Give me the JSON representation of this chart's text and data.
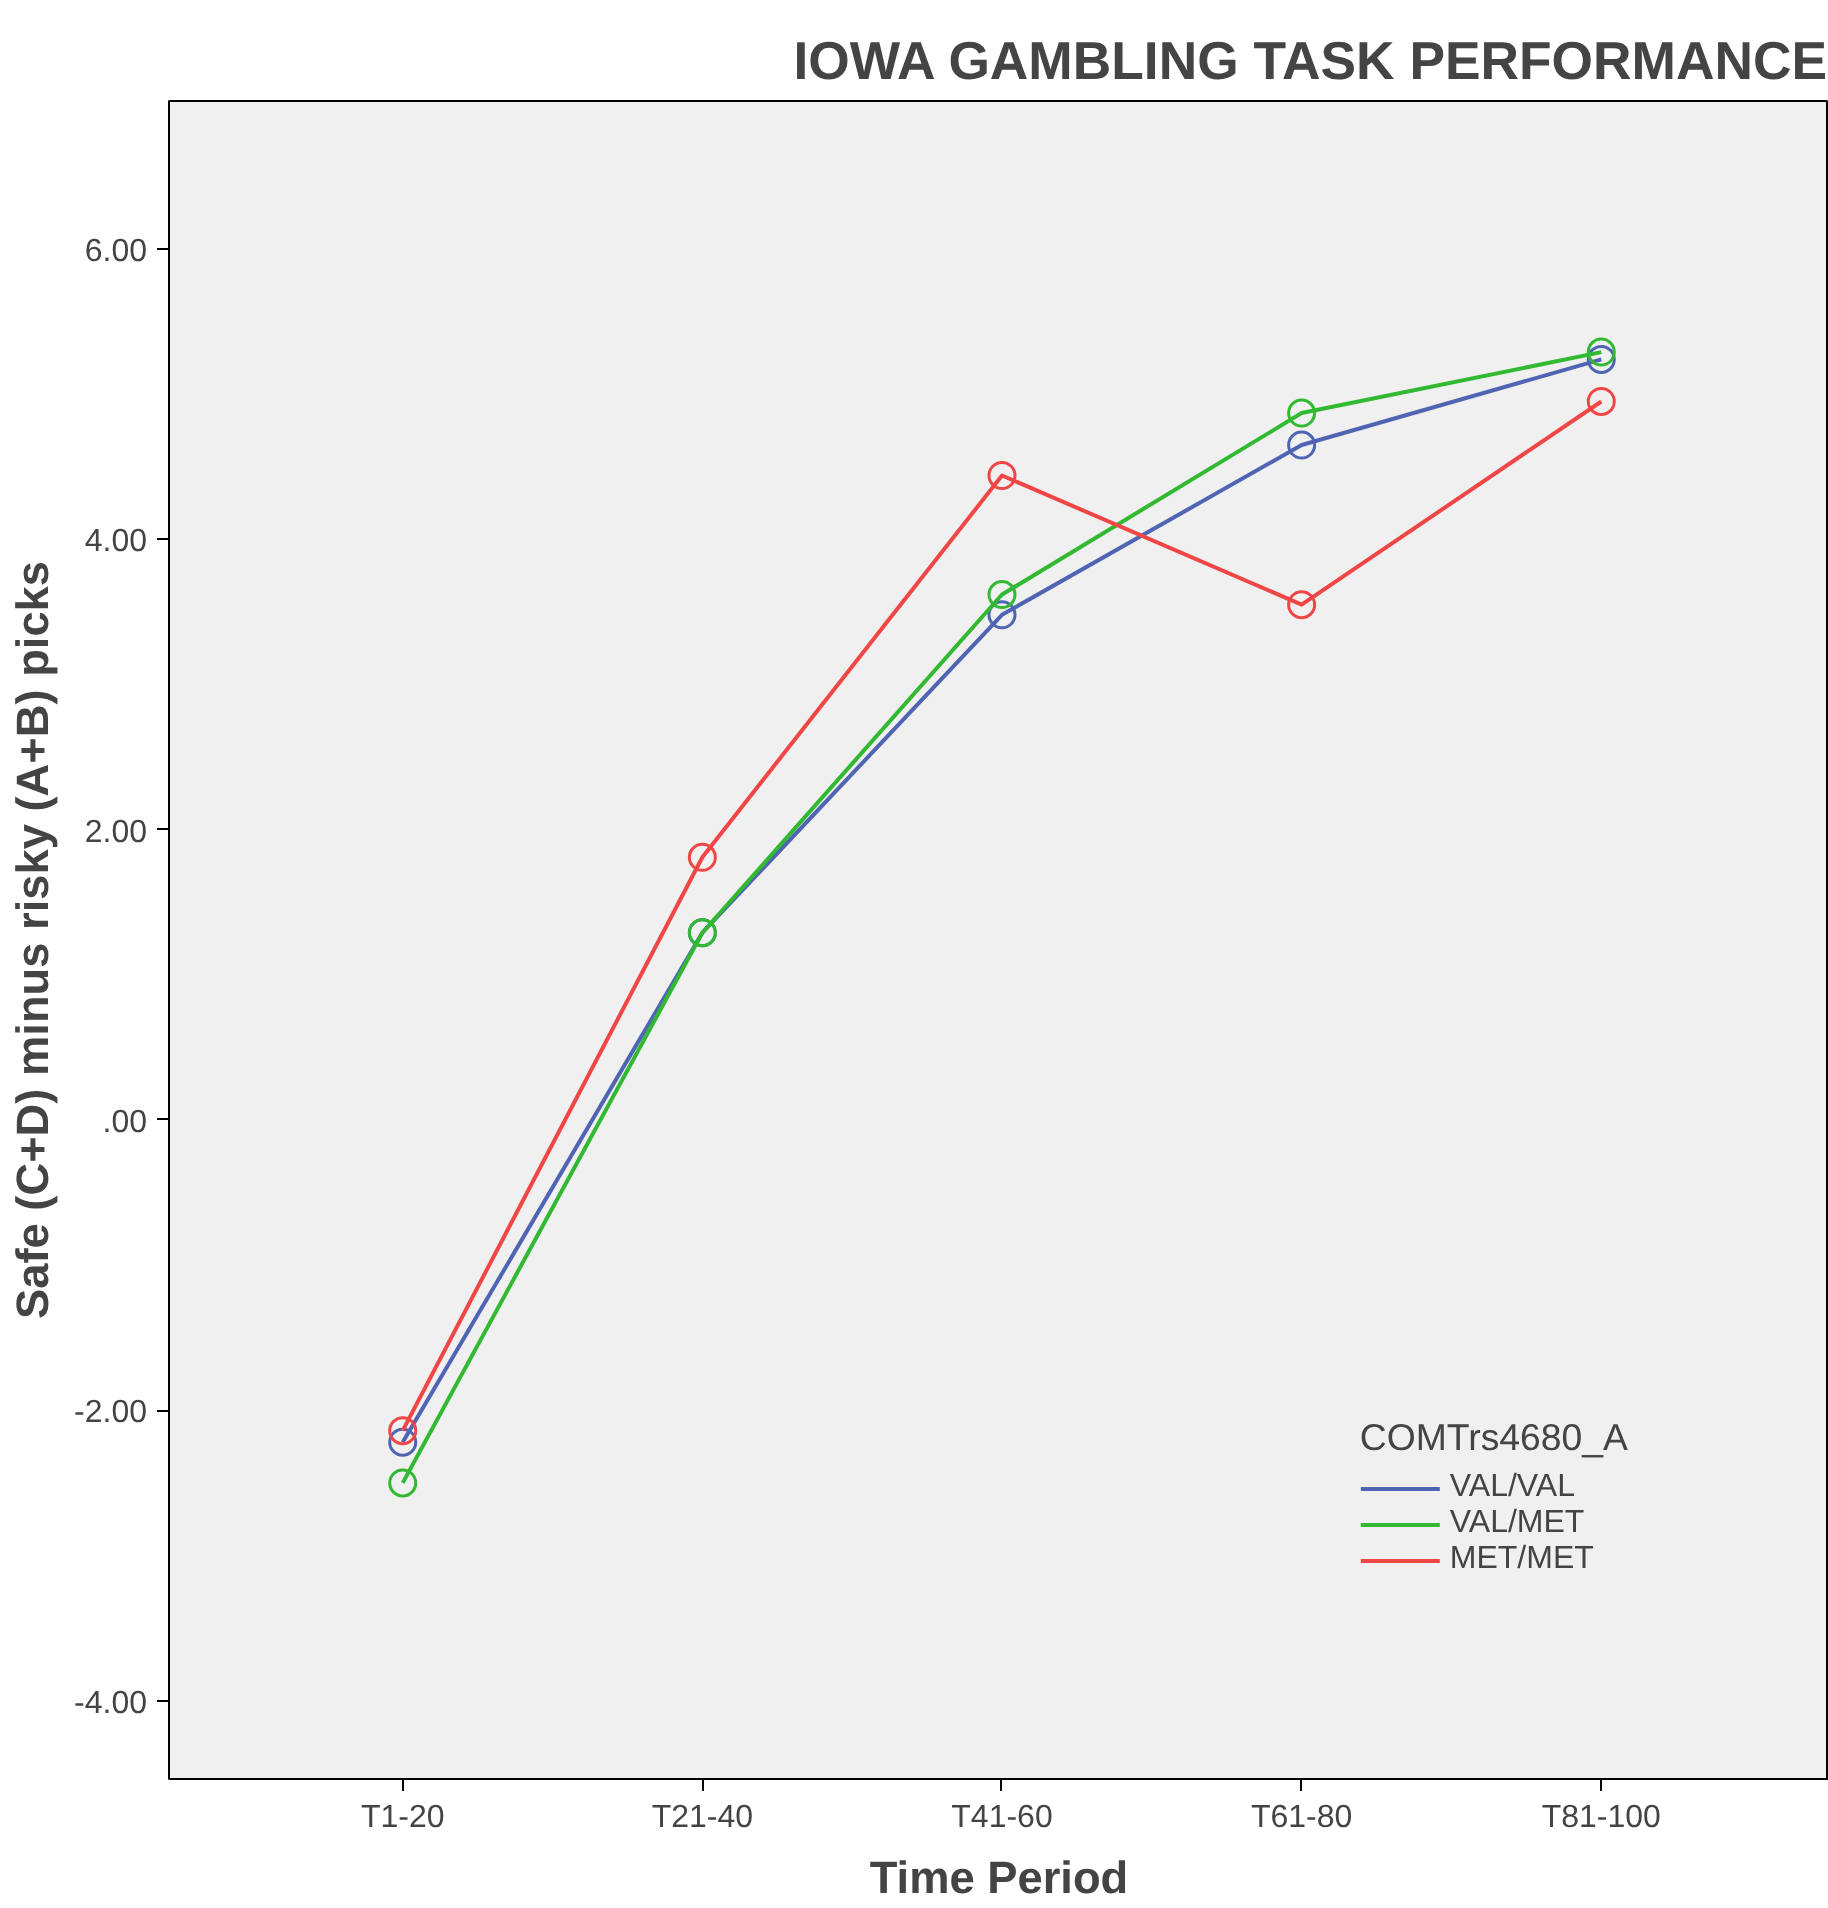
{
  "chart_data": {
    "type": "line",
    "title": "IOWA GAMBLING TASK PERFORMANCE",
    "xlabel": "Time Period",
    "ylabel": "Safe (C+D) minus risky (A+B) picks",
    "legend_title": "COMTrs4680_A",
    "categories": [
      "T1-20",
      "T21-40",
      "T41-60",
      "T61-80",
      "T81-100"
    ],
    "series": [
      {
        "name": "VAL/VAL",
        "color": "#5064b4",
        "values": [
          -2.22,
          1.29,
          3.48,
          4.65,
          5.24
        ]
      },
      {
        "name": "VAL/MET",
        "color": "#32b932",
        "values": [
          -2.5,
          1.29,
          3.62,
          4.87,
          5.29
        ]
      },
      {
        "name": "MET/MET",
        "color": "#f04646",
        "values": [
          -2.14,
          1.81,
          4.44,
          3.55,
          4.95
        ]
      }
    ],
    "ylim": [
      -4.54,
      7.02
    ],
    "yticks": [
      {
        "value": -4,
        "label": "-4.00"
      },
      {
        "value": -2,
        "label": "-2.00"
      },
      {
        "value": 0,
        "label": ".00"
      },
      {
        "value": 2,
        "label": "2.00"
      },
      {
        "value": 4,
        "label": "4.00"
      },
      {
        "value": 6,
        "label": "6.00"
      }
    ],
    "grid": false,
    "legend": "bottom right",
    "marker": "circle",
    "line_style": "solid"
  }
}
